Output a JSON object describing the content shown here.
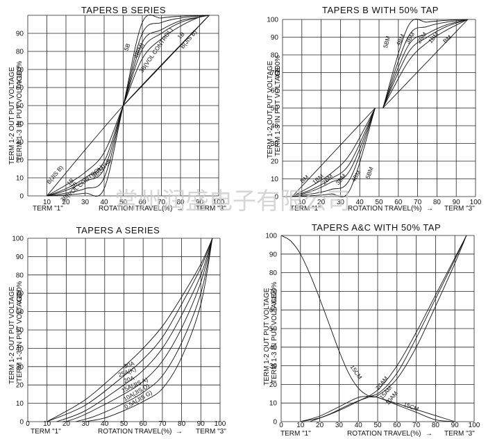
{
  "watermark": "常州润盛电子有限公司",
  "chart_data": [
    {
      "type": "line",
      "title": "TAPERS B SERIES",
      "xlabel": "ROTATION TRAVEL(%)",
      "term_left": "TERM \"1\"",
      "term_right": "TERM \"3\"",
      "ylabel_line1": "TERM 1-2 OUT PUT VOLTAGE",
      "ylabel_line2": "TERM 1-3 IN PUT VOLTAGE",
      "ylabel_suffix": "X100%",
      "xlim": [
        0,
        100
      ],
      "ylim": [
        0,
        100
      ],
      "x_ticks": [
        "10",
        "20",
        "30",
        "40",
        "50",
        "60",
        "70",
        "80",
        "90",
        "100"
      ],
      "y_ticks": [
        "0",
        "10",
        "20",
        "30",
        "40",
        "50",
        "60",
        "70",
        "80",
        "90"
      ],
      "grid": true,
      "series": [
        {
          "name": "B(JIS B)",
          "x": [
            10,
            50,
            95
          ],
          "y": [
            0,
            50,
            100
          ],
          "label_at": [
            15,
            11
          ],
          "label_angle": -50
        },
        {
          "name": "B(JIS B)",
          "x": [
            50,
            95
          ],
          "y": [
            50,
            100
          ],
          "label_at": [
            85,
            86
          ],
          "label_angle": -50
        },
        {
          "name": "1B",
          "x": [
            10,
            20,
            30,
            40,
            50,
            60,
            70,
            80,
            90,
            95
          ],
          "y": [
            0,
            6,
            13,
            24,
            50,
            76,
            87,
            94,
            99,
            100
          ],
          "label_at": [
            23,
            7
          ],
          "label_angle": -45
        },
        {
          "name": "1B",
          "x": [
            50,
            95
          ],
          "y": [
            50,
            100
          ],
          "label_at": [
            81,
            88
          ],
          "label_angle": -45
        },
        {
          "name": "2B",
          "x": [
            10,
            20,
            30,
            40,
            50,
            60,
            70,
            80,
            90,
            95
          ],
          "y": [
            0,
            4,
            10,
            19,
            50,
            81,
            90,
            96,
            99,
            100
          ],
          "label_at": [
            25,
            5
          ],
          "label_angle": -45
        },
        {
          "name": "3B(VOL CONTROL)",
          "x": [
            10,
            20,
            30,
            40,
            50,
            60,
            70,
            80,
            90,
            95
          ],
          "y": [
            0,
            3,
            8,
            15,
            50,
            85,
            92,
            97,
            99,
            100
          ],
          "label_at": [
            29,
            6
          ],
          "label_angle": -40
        },
        {
          "name": "3B(VOL CONTROL)",
          "x": [
            50,
            95
          ],
          "y": [
            50,
            100
          ],
          "label_at": [
            68,
            80
          ],
          "label_angle": -55
        },
        {
          "name": "4B(M)",
          "x": [
            10,
            20,
            30,
            40,
            50,
            60,
            70,
            80,
            90,
            95
          ],
          "y": [
            0,
            1.5,
            4,
            10,
            50,
            90,
            96,
            98.5,
            99.6,
            100
          ],
          "label_at": [
            38,
            13
          ],
          "label_angle": -50
        },
        {
          "name": "4B(M)",
          "x": [
            50,
            95
          ],
          "y": [
            50,
            100
          ],
          "label_at": [
            59,
            80
          ],
          "label_angle": -65
        },
        {
          "name": "5B",
          "x": [
            10,
            20,
            30,
            40,
            50,
            60,
            70,
            80,
            90,
            95
          ],
          "y": [
            0,
            0.5,
            1.5,
            4,
            50,
            96,
            98.5,
            99.5,
            99.8,
            100
          ],
          "label_at": [
            43,
            18
          ],
          "label_angle": -65
        },
        {
          "name": "5B",
          "x": [
            50,
            95
          ],
          "y": [
            50,
            100
          ],
          "label_at": [
            53,
            82
          ],
          "label_angle": -70
        }
      ]
    },
    {
      "type": "line",
      "title": "TAPERS B WITH 50% TAP",
      "xlabel": "ROTATION TRAVEL(%)",
      "term_left": "TERM \"1\"",
      "term_right": "TERM \"3\"",
      "ylabel_line1": "TERM 1-2 OUT PUT VOLTAGE",
      "ylabel_line2": "TERM 1-3 IN PUT VOLTAGE",
      "ylabel_suffix": "X100%",
      "xlim": [
        0,
        100
      ],
      "ylim": [
        0,
        100
      ],
      "x_ticks": [
        "10",
        "20",
        "30",
        "40",
        "50",
        "60",
        "70",
        "80",
        "90",
        "100"
      ],
      "y_ticks": [
        "0",
        "10",
        "20",
        "30",
        "40",
        "50",
        "60",
        "70",
        "80",
        "90",
        "100"
      ],
      "grid": true,
      "series": [
        {
          "name": "BM",
          "x": [
            5,
            48
          ],
          "y": [
            0,
            50
          ],
          "label_at": [
            12,
            9
          ],
          "label_angle": -40
        },
        {
          "name": "BM",
          "x": [
            52,
            96
          ],
          "y": [
            50,
            100
          ],
          "label_at": [
            86,
            88
          ],
          "label_angle": -40
        },
        {
          "name": "1BM",
          "x": [
            5,
            15,
            25,
            35,
            48
          ],
          "y": [
            0,
            6,
            13,
            24,
            50
          ],
          "label_at": [
            19,
            9
          ],
          "label_angle": -40
        },
        {
          "name": "1BM",
          "x": [
            52,
            65,
            75,
            85,
            96
          ],
          "y": [
            50,
            76,
            87,
            94,
            100
          ],
          "label_at": [
            79,
            89
          ],
          "label_angle": -50
        },
        {
          "name": "2BM",
          "x": [
            5,
            15,
            25,
            35,
            48
          ],
          "y": [
            0,
            4,
            10,
            19,
            50
          ],
          "label_at": [
            24,
            9
          ],
          "label_angle": -45
        },
        {
          "name": "2BM",
          "x": [
            52,
            65,
            75,
            85,
            96
          ],
          "y": [
            50,
            81,
            90,
            96,
            100
          ],
          "label_at": [
            73,
            89
          ],
          "label_angle": -55
        },
        {
          "name": "3BM",
          "x": [
            5,
            15,
            25,
            35,
            48
          ],
          "y": [
            0,
            3,
            8,
            15,
            50
          ],
          "label_at": [
            31,
            9
          ],
          "label_angle": -50
        },
        {
          "name": "3BM",
          "x": [
            52,
            65,
            75,
            85,
            96
          ],
          "y": [
            50,
            85,
            92,
            97,
            100
          ],
          "label_at": [
            67,
            89
          ],
          "label_angle": -60
        },
        {
          "name": "4BM",
          "x": [
            5,
            15,
            25,
            35,
            48
          ],
          "y": [
            0,
            1.5,
            4,
            10,
            50
          ],
          "label_at": [
            39,
            11
          ],
          "label_angle": -60
        },
        {
          "name": "4BM",
          "x": [
            52,
            65,
            75,
            85,
            96
          ],
          "y": [
            50,
            90,
            96,
            98.5,
            100
          ],
          "label_at": [
            62,
            88
          ],
          "label_angle": -65
        },
        {
          "name": "5BM",
          "x": [
            5,
            15,
            25,
            35,
            48
          ],
          "y": [
            0,
            0.5,
            1.5,
            4,
            50
          ],
          "label_at": [
            46,
            13
          ],
          "label_angle": -70
        },
        {
          "name": "5BM",
          "x": [
            52,
            65,
            75,
            85,
            96
          ],
          "y": [
            50,
            96,
            98.5,
            99.5,
            100
          ],
          "label_at": [
            55,
            87
          ],
          "label_angle": -75
        }
      ]
    },
    {
      "type": "line",
      "title": "TAPERS A SERIES",
      "xlabel": "ROTATION TRAVEL(%)",
      "term_left": "TERM \"1\"",
      "term_right": "TERM \"3\"",
      "ylabel_line1": "TERM 1-2 OUT PUT VOLTAGE",
      "ylabel_line2": "TERM 1-3 IN PUT VOLTAGE",
      "ylabel_suffix": "X100%",
      "xlim": [
        0,
        100
      ],
      "ylim": [
        0,
        100
      ],
      "x_ticks": [
        "0",
        "10",
        "20",
        "30",
        "40",
        "50",
        "60",
        "70",
        "80",
        "90",
        "100"
      ],
      "y_ticks": [
        "0",
        "10",
        "20",
        "30",
        "40",
        "50",
        "60",
        "70",
        "80",
        "90",
        "100"
      ],
      "grid": true,
      "series": [
        {
          "name": "30A",
          "x": [
            10,
            30,
            50,
            60,
            70,
            80,
            90,
            96
          ],
          "y": [
            0,
            12,
            30,
            40,
            52,
            68,
            86,
            100
          ],
          "label_at": [
            53,
            30
          ],
          "label_angle": -20
        },
        {
          "name": "25A(K)",
          "x": [
            10,
            30,
            50,
            60,
            70,
            80,
            90,
            96
          ],
          "y": [
            0,
            9,
            25,
            34,
            46,
            64,
            84,
            100
          ],
          "label_at": [
            52,
            26
          ],
          "label_angle": -20
        },
        {
          "name": "20A",
          "x": [
            15,
            30,
            50,
            60,
            70,
            80,
            90,
            96
          ],
          "y": [
            0,
            6,
            20,
            28,
            40,
            58,
            80,
            100
          ],
          "label_at": [
            53,
            22
          ],
          "label_angle": -20
        },
        {
          "name": "15A(JIS A)",
          "x": [
            20,
            30,
            50,
            60,
            70,
            80,
            90,
            96
          ],
          "y": [
            0,
            4,
            15,
            22,
            33,
            51,
            76,
            100
          ],
          "label_at": [
            56,
            19
          ],
          "label_angle": -25
        },
        {
          "name": "10A(JIS D)",
          "x": [
            25,
            35,
            50,
            60,
            70,
            80,
            90,
            96
          ],
          "y": [
            0,
            3,
            10,
            16,
            25,
            43,
            70,
            100
          ],
          "label_at": [
            57,
            15
          ],
          "label_angle": -30
        },
        {
          "name": "0.5A(JIS G)",
          "x": [
            30,
            40,
            50,
            60,
            70,
            80,
            90,
            96
          ],
          "y": [
            0,
            2,
            6,
            11,
            18,
            35,
            64,
            100
          ],
          "label_at": [
            58,
            11
          ],
          "label_angle": -30
        }
      ]
    },
    {
      "type": "line",
      "title": "TAPERS A&C WITH 50% TAP",
      "xlabel": "ROTATION TRAVEL(%)",
      "term_left": "TERM \"1\"",
      "term_right": "TERM \"3\"",
      "ylabel_line1": "TERM 1-2 OUT PUT VOLTAGE",
      "ylabel_line2": "TERM 1-3 IN PUT VOLTAGE",
      "ylabel_suffix": "X100%",
      "xlim": [
        0,
        100
      ],
      "ylim": [
        0,
        100
      ],
      "x_ticks": [
        "0",
        "10",
        "20",
        "30",
        "40",
        "50",
        "60",
        "70",
        "80",
        "90",
        "100"
      ],
      "y_ticks": [
        "0",
        "10",
        "20",
        "30",
        "40",
        "50",
        "60",
        "70",
        "80",
        "90",
        "100"
      ],
      "grid": true,
      "series": [
        {
          "name": "15CM",
          "x": [
            0,
            5,
            10,
            15,
            20,
            25,
            30,
            35,
            40,
            45,
            50,
            60,
            70,
            80,
            90
          ],
          "y": [
            100,
            97,
            90,
            79,
            66,
            52,
            38,
            26,
            18,
            14,
            13,
            9,
            5,
            1,
            0
          ],
          "label_at": [
            38,
            26
          ],
          "label_angle": 55
        },
        {
          "name": "15CM",
          "x": [
            50,
            90
          ],
          "y": [
            13,
            0
          ],
          "label_at": [
            67,
            7
          ],
          "label_angle": 20
        },
        {
          "name": "20AM",
          "x": [
            10,
            20,
            30,
            40,
            50,
            60,
            70,
            80,
            90,
            96
          ],
          "y": [
            0,
            2,
            6,
            11,
            17,
            30,
            48,
            68,
            88,
            100
          ],
          "label_at": [
            53,
            20
          ],
          "label_angle": -50
        },
        {
          "name": "15AM",
          "x": [
            10,
            20,
            30,
            40,
            50,
            60,
            70,
            80,
            90,
            96
          ],
          "y": [
            0,
            3,
            8,
            13,
            15,
            26,
            45,
            66,
            87,
            100
          ],
          "label_at": [
            55,
            15
          ],
          "label_angle": -50
        },
        {
          "name": "10AM",
          "x": [
            15,
            25,
            35,
            45,
            50,
            60,
            70,
            80,
            90,
            96
          ],
          "y": [
            0,
            4,
            9,
            13,
            14,
            23,
            40,
            62,
            85,
            100
          ],
          "label_at": [
            58,
            12
          ],
          "label_angle": -50
        }
      ]
    }
  ]
}
